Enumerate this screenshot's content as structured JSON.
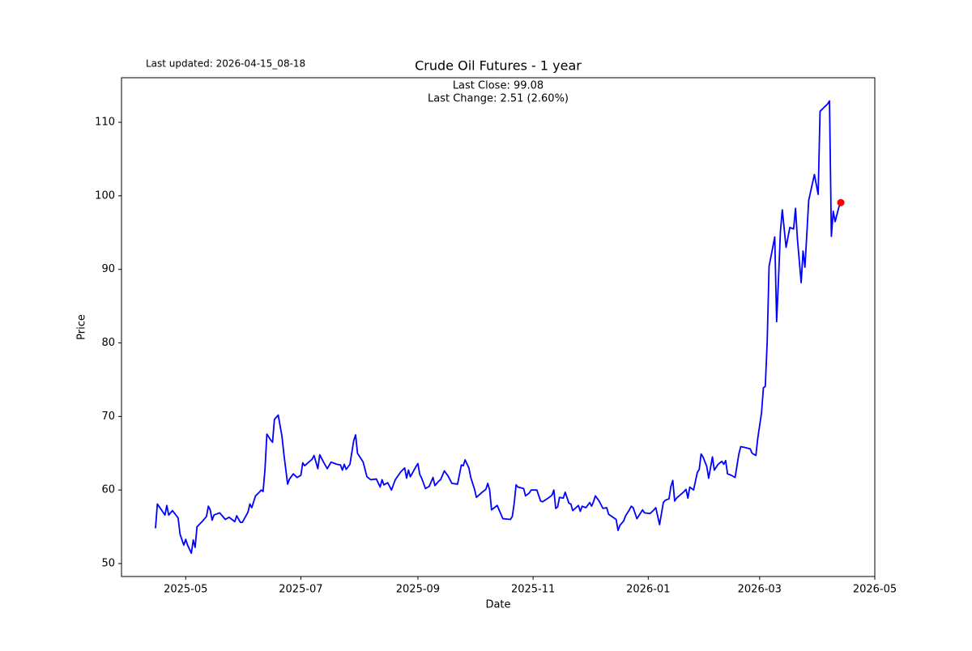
{
  "chart_data": {
    "type": "line",
    "title": "Crude Oil Futures - 1 year",
    "subtitle": "Last updated: 2026-04-15_08-18",
    "annotations": [
      "Last Close: 99.08",
      "Last Change: 2.51 (2.60%)"
    ],
    "x_label": "Date",
    "y_label": "Price",
    "color": "#0000ff",
    "last_point_color": "#ff0000",
    "xlim": [
      "2025-03-28",
      "2026-05-01"
    ],
    "xticks": [
      {
        "value": "2025-05-01",
        "label": "2025-05"
      },
      {
        "value": "2025-07-01",
        "label": "2025-07"
      },
      {
        "value": "2025-09-01",
        "label": "2025-09"
      },
      {
        "value": "2025-11-01",
        "label": "2025-11"
      },
      {
        "value": "2026-01-01",
        "label": "2026-01"
      },
      {
        "value": "2026-03-01",
        "label": "2026-03"
      },
      {
        "value": "2026-05-01",
        "label": "2026-05"
      }
    ],
    "ylim": [
      48.24,
      116.06
    ],
    "yticks": [
      50,
      60,
      70,
      80,
      90,
      100,
      110
    ],
    "x": [
      "2025-04-15",
      "2025-04-16",
      "2025-04-20",
      "2025-04-21",
      "2025-04-22",
      "2025-04-24",
      "2025-04-27",
      "2025-04-28",
      "2025-04-30",
      "2025-05-01",
      "2025-05-02",
      "2025-05-04",
      "2025-05-05",
      "2025-05-06",
      "2025-05-07",
      "2025-05-10",
      "2025-05-12",
      "2025-05-13",
      "2025-05-14",
      "2025-05-15",
      "2025-05-16",
      "2025-05-19",
      "2025-05-22",
      "2025-05-24",
      "2025-05-27",
      "2025-05-28",
      "2025-05-30",
      "2025-05-31",
      "2025-06-03",
      "2025-06-04",
      "2025-06-05",
      "2025-06-07",
      "2025-06-09",
      "2025-06-10",
      "2025-06-11",
      "2025-06-12",
      "2025-06-13",
      "2025-06-15",
      "2025-06-16",
      "2025-06-17",
      "2025-06-19",
      "2025-06-21",
      "2025-06-22",
      "2025-06-24",
      "2025-06-25",
      "2025-06-27",
      "2025-06-29",
      "2025-07-01",
      "2025-07-02",
      "2025-07-03",
      "2025-07-07",
      "2025-07-08",
      "2025-07-10",
      "2025-07-11",
      "2025-07-13",
      "2025-07-15",
      "2025-07-17",
      "2025-07-20",
      "2025-07-22",
      "2025-07-23",
      "2025-07-24",
      "2025-07-25",
      "2025-07-27",
      "2025-07-29",
      "2025-07-30",
      "2025-07-31",
      "2025-08-03",
      "2025-08-05",
      "2025-08-07",
      "2025-08-10",
      "2025-08-12",
      "2025-08-13",
      "2025-08-14",
      "2025-08-16",
      "2025-08-18",
      "2025-08-20",
      "2025-08-23",
      "2025-08-25",
      "2025-08-26",
      "2025-08-27",
      "2025-08-28",
      "2025-08-31",
      "2025-09-01",
      "2025-09-02",
      "2025-09-03",
      "2025-09-05",
      "2025-09-07",
      "2025-09-09",
      "2025-09-10",
      "2025-09-12",
      "2025-09-13",
      "2025-09-15",
      "2025-09-17",
      "2025-09-19",
      "2025-09-22",
      "2025-09-24",
      "2025-09-25",
      "2025-09-26",
      "2025-09-28",
      "2025-09-29",
      "2025-10-01",
      "2025-10-02",
      "2025-10-05",
      "2025-10-07",
      "2025-10-08",
      "2025-10-09",
      "2025-10-10",
      "2025-10-11",
      "2025-10-13",
      "2025-10-16",
      "2025-10-20",
      "2025-10-21",
      "2025-10-22",
      "2025-10-23",
      "2025-10-24",
      "2025-10-27",
      "2025-10-28",
      "2025-10-30",
      "2025-10-31",
      "2025-11-03",
      "2025-11-05",
      "2025-11-06",
      "2025-11-09",
      "2025-11-11",
      "2025-11-12",
      "2025-11-13",
      "2025-11-14",
      "2025-11-15",
      "2025-11-17",
      "2025-11-18",
      "2025-11-20",
      "2025-11-21",
      "2025-11-22",
      "2025-11-25",
      "2025-11-26",
      "2025-11-27",
      "2025-11-29",
      "2025-12-01",
      "2025-12-02",
      "2025-12-03",
      "2025-12-04",
      "2025-12-06",
      "2025-12-08",
      "2025-12-10",
      "2025-12-11",
      "2025-12-15",
      "2025-12-16",
      "2025-12-17",
      "2025-12-19",
      "2025-12-20",
      "2025-12-22",
      "2025-12-23",
      "2025-12-24",
      "2025-12-26",
      "2025-12-29",
      "2025-12-30",
      "2026-01-02",
      "2026-01-04",
      "2026-01-05",
      "2026-01-07",
      "2026-01-09",
      "2026-01-10",
      "2026-01-12",
      "2026-01-13",
      "2026-01-14",
      "2026-01-15",
      "2026-01-16",
      "2026-01-20",
      "2026-01-21",
      "2026-01-22",
      "2026-01-23",
      "2026-01-25",
      "2026-01-27",
      "2026-01-28",
      "2026-01-29",
      "2026-01-30",
      "2026-02-01",
      "2026-02-02",
      "2026-02-04",
      "2026-02-05",
      "2026-02-07",
      "2026-02-09",
      "2026-02-10",
      "2026-02-11",
      "2026-02-12",
      "2026-02-14",
      "2026-02-16",
      "2026-02-18",
      "2026-02-19",
      "2026-02-21",
      "2026-02-24",
      "2026-02-25",
      "2026-02-27",
      "2026-02-28",
      "2026-03-02",
      "2026-03-03",
      "2026-03-04",
      "2026-03-05",
      "2026-03-06",
      "2026-03-09",
      "2026-03-10",
      "2026-03-11",
      "2026-03-12",
      "2026-03-13",
      "2026-03-15",
      "2026-03-17",
      "2026-03-19",
      "2026-03-20",
      "2026-03-21",
      "2026-03-23",
      "2026-03-24",
      "2026-03-25",
      "2026-03-27",
      "2026-03-30",
      "2026-04-01",
      "2026-04-02",
      "2026-04-06",
      "2026-04-07",
      "2026-04-08",
      "2026-04-09",
      "2026-04-10",
      "2026-04-12",
      "2026-04-13"
    ],
    "values": [
      54.8,
      58.1,
      56.6,
      57.9,
      56.6,
      57.2,
      56.2,
      54.0,
      52.5,
      53.3,
      52.5,
      51.4,
      53.2,
      52.2,
      55.0,
      55.8,
      56.4,
      57.8,
      57.3,
      55.9,
      56.6,
      56.9,
      56.0,
      56.3,
      55.7,
      56.5,
      55.6,
      55.6,
      57.0,
      58.1,
      57.6,
      59.2,
      59.7,
      60.0,
      59.8,
      62.8,
      67.6,
      66.8,
      66.5,
      69.6,
      70.2,
      67.3,
      64.9,
      60.8,
      61.5,
      62.2,
      61.7,
      62.0,
      63.7,
      63.3,
      64.2,
      64.7,
      62.9,
      64.8,
      63.8,
      62.9,
      63.8,
      63.5,
      63.4,
      62.7,
      63.5,
      62.8,
      63.5,
      66.7,
      67.5,
      65.0,
      63.8,
      61.8,
      61.4,
      61.5,
      60.4,
      61.4,
      60.7,
      61.0,
      60.0,
      61.4,
      62.5,
      63.0,
      61.6,
      62.7,
      61.8,
      63.2,
      63.6,
      62.1,
      61.6,
      60.2,
      60.5,
      61.7,
      60.6,
      61.2,
      61.4,
      62.6,
      61.9,
      60.9,
      60.8,
      63.4,
      63.3,
      64.1,
      63.0,
      61.7,
      60.1,
      59.0,
      59.7,
      60.1,
      60.9,
      60.0,
      57.3,
      57.5,
      57.9,
      56.1,
      56.0,
      56.4,
      58.2,
      60.7,
      60.4,
      60.2,
      59.2,
      59.6,
      60.0,
      60.0,
      58.5,
      58.4,
      58.9,
      59.3,
      60.0,
      57.5,
      57.7,
      59.0,
      58.9,
      59.7,
      58.2,
      58.1,
      57.2,
      57.9,
      57.1,
      57.8,
      57.6,
      58.3,
      57.8,
      58.4,
      59.2,
      58.5,
      57.5,
      57.6,
      56.7,
      56.0,
      54.5,
      55.2,
      55.8,
      56.5,
      57.3,
      57.8,
      57.6,
      56.1,
      57.3,
      56.9,
      56.8,
      57.3,
      57.6,
      55.3,
      58.3,
      58.6,
      58.8,
      60.5,
      61.3,
      58.5,
      58.9,
      59.8,
      60.1,
      58.9,
      60.4,
      60.0,
      62.4,
      62.8,
      64.9,
      64.5,
      63.2,
      61.6,
      64.5,
      62.7,
      63.5,
      63.9,
      63.5,
      64.0,
      62.2,
      62.0,
      61.7,
      64.9,
      65.9,
      65.8,
      65.6,
      65.0,
      64.7,
      67.0,
      70.5,
      73.9,
      74.1,
      80.1,
      90.4,
      94.4,
      82.9,
      88.7,
      95.1,
      98.1,
      93.0,
      95.7,
      95.5,
      98.3,
      94.2,
      88.2,
      92.5,
      90.3,
      99.4,
      102.9,
      100.2,
      111.5,
      112.5,
      112.9,
      94.5,
      97.9,
      96.5,
      98.5,
      99.08
    ]
  }
}
